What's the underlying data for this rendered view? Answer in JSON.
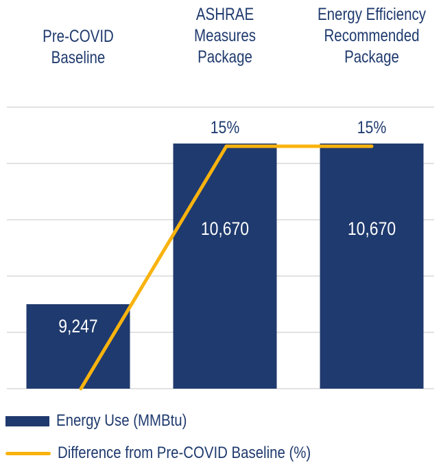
{
  "chart_data": {
    "type": "bar",
    "categories": [
      "Pre-COVID\nBaseline",
      "ASHRAE\nMeasures\nPackage",
      "Energy Efficiency\nRecommended\nPackage"
    ],
    "series": [
      {
        "name": "Energy Use (MMBtu)",
        "type": "bar",
        "values": [
          9247,
          10670,
          10670
        ],
        "labels": [
          "9,247",
          "10,670",
          "10,670"
        ]
      },
      {
        "name": "Difference from Pre-COVID Baseline (%)",
        "type": "line",
        "values": [
          0,
          15,
          15
        ],
        "labels": [
          "",
          "15%",
          "15%"
        ]
      }
    ],
    "grid": true,
    "legend_position": "bottom",
    "colors": {
      "bar": "#1f3a6e",
      "line": "#f9b30f",
      "grid": "#d9d9d9"
    }
  },
  "legend": {
    "bar_label": "Energy Use (MMBtu)",
    "line_label": "Difference from Pre-COVID Baseline (%)"
  }
}
